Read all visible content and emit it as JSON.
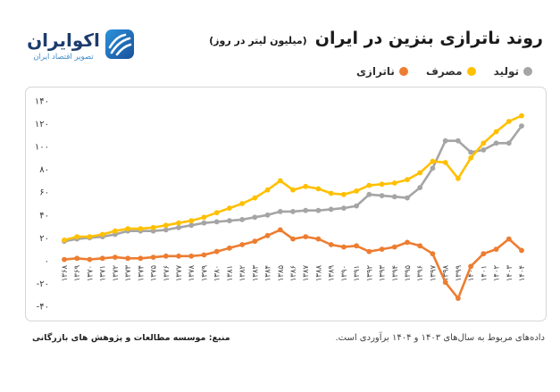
{
  "logo": {
    "name": "اکوایران",
    "tagline": "تصویر اقتصاد ایران",
    "icon": "ecoiran-logo-icon",
    "colors": {
      "name": "#1c3b6e",
      "tagline": "#3d8bc9",
      "icon": "#2172c0"
    }
  },
  "chart_data": {
    "type": "line",
    "title": "روند ناترازی بنزین در ایران",
    "subtitle": "(میلیون لیتر در روز)",
    "categories": [
      "۱۳۶۸",
      "۱۳۶۹",
      "۱۳۷۰",
      "۱۳۷۱",
      "۱۳۷۲",
      "۱۳۷۳",
      "۱۳۷۴",
      "۱۳۷۵",
      "۱۳۷۶",
      "۱۳۷۷",
      "۱۳۷۸",
      "۱۳۷۹",
      "۱۳۸۰",
      "۱۳۸۱",
      "۱۳۸۲",
      "۱۳۸۳",
      "۱۳۸۴",
      "۱۳۸۵",
      "۱۳۸۶",
      "۱۳۸۷",
      "۱۳۸۸",
      "۱۳۸۹",
      "۱۳۹۰",
      "۱۳۹۱",
      "۱۳۹۲",
      "۱۳۹۳",
      "۱۳۹۴",
      "۱۳۹۵",
      "۱۳۹۶",
      "۱۳۹۷",
      "۱۳۹۸",
      "۱۳۹۹",
      "۱۴۰۰",
      "۱۴۰۱",
      "۱۴۰۲",
      "۱۴۰۳",
      "۱۴۰۴"
    ],
    "series": [
      {
        "name": "تولید",
        "color": "#a5a5a5",
        "values": [
          17,
          19,
          20,
          21,
          23,
          26,
          26,
          26,
          27,
          29,
          31,
          33,
          34,
          35,
          36,
          38,
          40,
          43,
          43,
          44,
          44,
          45,
          46,
          48,
          58,
          57,
          56,
          55,
          64,
          81,
          105,
          105,
          95,
          97,
          103,
          103,
          118
        ]
      },
      {
        "name": "مصرف",
        "color": "#ffc000",
        "values": [
          18,
          21,
          21,
          23,
          26,
          28,
          28,
          29,
          31,
          33,
          35,
          38,
          42,
          46,
          50,
          55,
          62,
          70,
          62,
          65,
          63,
          59,
          58,
          61,
          66,
          67,
          68,
          71,
          77,
          87,
          86,
          72,
          90,
          103,
          113,
          122,
          127
        ]
      },
      {
        "name": "ناترازی",
        "color": "#ed7d31",
        "values": [
          1,
          2,
          1,
          2,
          3,
          2,
          2,
          3,
          4,
          4,
          4,
          5,
          8,
          11,
          14,
          17,
          22,
          27,
          19,
          21,
          19,
          14,
          12,
          13,
          8,
          10,
          12,
          16,
          13,
          6,
          -19,
          -33,
          -5,
          6,
          10,
          19,
          9
        ]
      }
    ],
    "ylim": [
      -40,
      140
    ],
    "yticks": [
      {
        "value": 140,
        "label": "۱۴۰"
      },
      {
        "value": 120,
        "label": "۱۲۰"
      },
      {
        "value": 100,
        "label": "۱۰۰"
      },
      {
        "value": 80,
        "label": "۸۰"
      },
      {
        "value": 60,
        "label": "۶۰"
      },
      {
        "value": 40,
        "label": "۴۰"
      },
      {
        "value": 20,
        "label": "۲۰"
      },
      {
        "value": 0,
        "label": "۰"
      },
      {
        "value": -20,
        "label": "-۲۰"
      },
      {
        "value": -40,
        "label": "-۴۰"
      }
    ],
    "grid": false,
    "markers": true,
    "legend_position": "top-right"
  },
  "footer": {
    "note": "داده‌های مربوط به سال‌های ۱۴۰۳ و ۱۴۰۴ برآوردی است.",
    "source": "منبع: موسسه مطالعات و پژوهش های بازرگانی"
  }
}
